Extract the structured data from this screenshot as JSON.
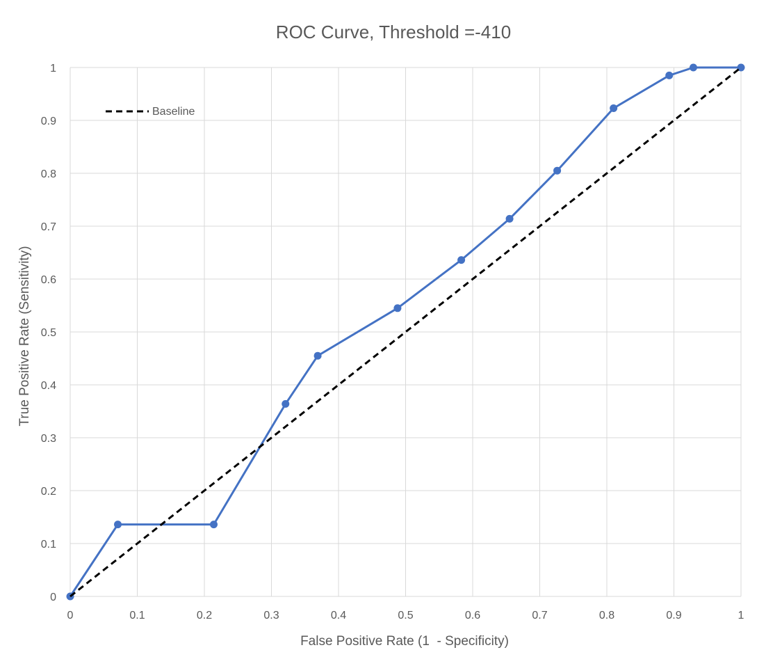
{
  "chart_data": {
    "type": "line",
    "title": "ROC Curve, Threshold =-410",
    "xlabel": "False Positive Rate (1  - Specificity)",
    "ylabel": "True Positive Rate (Sensitivity)",
    "xlim": [
      0,
      1
    ],
    "ylim": [
      0,
      1
    ],
    "x_ticks": [
      "0",
      "0.1",
      "0.2",
      "0.3",
      "0.4",
      "0.5",
      "0.6",
      "0.7",
      "0.8",
      "0.9",
      "1"
    ],
    "y_ticks": [
      "0",
      "0.1",
      "0.2",
      "0.3",
      "0.4",
      "0.5",
      "0.6",
      "0.7",
      "0.8",
      "0.9",
      "1"
    ],
    "grid": true,
    "legend_position": "top-left",
    "series": [
      {
        "color": "#4472C4",
        "markers": true,
        "dashed": false,
        "x": [
          0,
          0.071,
          0.214,
          0.321,
          0.369,
          0.488,
          0.583,
          0.655,
          0.726,
          0.81,
          0.893,
          0.929,
          1.0
        ],
        "y": [
          0,
          0.136,
          0.136,
          0.364,
          0.455,
          0.545,
          0.636,
          0.714,
          0.805,
          0.923,
          0.985,
          1.0,
          1.0
        ]
      },
      {
        "name": "Baseline",
        "color": "#000000",
        "markers": false,
        "dashed": true,
        "x": [
          0,
          1
        ],
        "y": [
          0,
          1
        ]
      }
    ]
  }
}
